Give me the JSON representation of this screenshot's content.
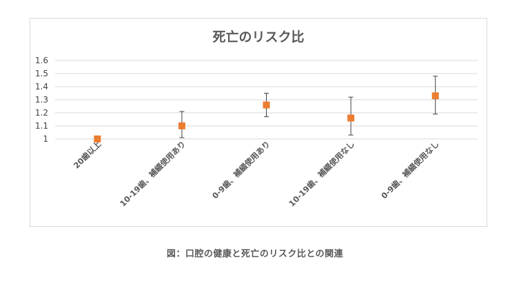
{
  "caption": "図：口腔の健康と死亡のリスク比との関連",
  "chart_data": {
    "type": "scatter",
    "title": "死亡のリスク比",
    "xlabel": "",
    "ylabel": "",
    "categories": [
      "20歯以上",
      "10-19歯、補綴使用あり",
      "0-9歯、補綴使用あり",
      "10-19歯、補綴使用なし",
      "0-9歯、補綴使用なし"
    ],
    "series": [
      {
        "values": [
          1.0,
          1.1,
          1.26,
          1.16,
          1.33
        ],
        "error_low": [
          null,
          1.01,
          1.17,
          1.03,
          1.19
        ],
        "error_high": [
          null,
          1.21,
          1.35,
          1.32,
          1.48
        ],
        "color": "#ED7D31"
      }
    ],
    "yticks": [
      "1",
      "1.1",
      "1.2",
      "1.3",
      "1.4",
      "1.5",
      "1.6"
    ],
    "ylim": [
      1,
      1.6
    ],
    "grid": true,
    "gridline_color": "#d9d9d9",
    "marker": "square",
    "errorbar_color": "#404040"
  }
}
